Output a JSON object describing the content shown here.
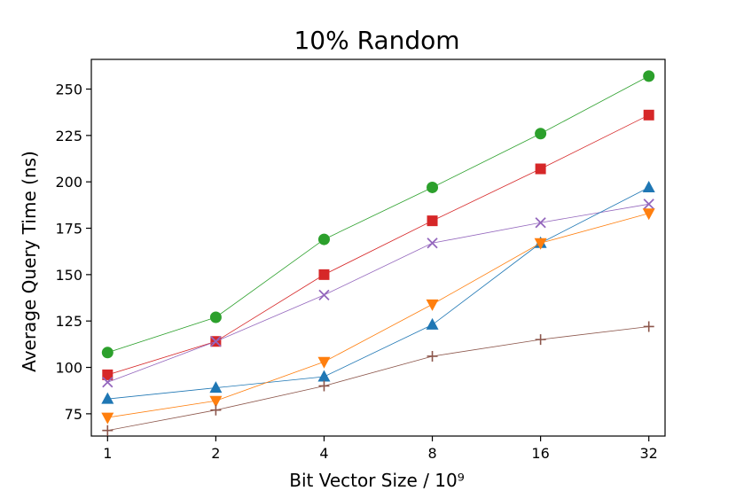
{
  "chart_data": {
    "type": "line",
    "title": "10% Random",
    "xlabel": "Bit Vector Size / 10⁹",
    "ylabel": "Average Query Time (ns)",
    "x_scale": "log2",
    "x": [
      1,
      2,
      4,
      8,
      16,
      32
    ],
    "x_tick_labels": [
      "1",
      "2",
      "4",
      "8",
      "16",
      "32"
    ],
    "y_ticks": [
      75,
      100,
      125,
      150,
      175,
      200,
      225,
      250
    ],
    "ylim": [
      63,
      266
    ],
    "grid": false,
    "legend": "none",
    "series": [
      {
        "color": "#2ca02c",
        "marker": "circle",
        "values": [
          108,
          127,
          169,
          197,
          226,
          257
        ]
      },
      {
        "color": "#d62728",
        "marker": "square",
        "values": [
          96,
          114,
          150,
          179,
          207,
          236
        ]
      },
      {
        "color": "#9467bd",
        "marker": "x",
        "values": [
          92,
          114,
          139,
          167,
          178,
          188
        ]
      },
      {
        "color": "#1f77b4",
        "marker": "triangle-up",
        "values": [
          83,
          89,
          95,
          123,
          167,
          197
        ]
      },
      {
        "color": "#ff7f0e",
        "marker": "triangle-down",
        "values": [
          73,
          82,
          103,
          134,
          167,
          183
        ]
      },
      {
        "color": "#8c564b",
        "marker": "plus",
        "values": [
          66,
          77,
          90,
          106,
          115,
          122
        ]
      }
    ]
  }
}
